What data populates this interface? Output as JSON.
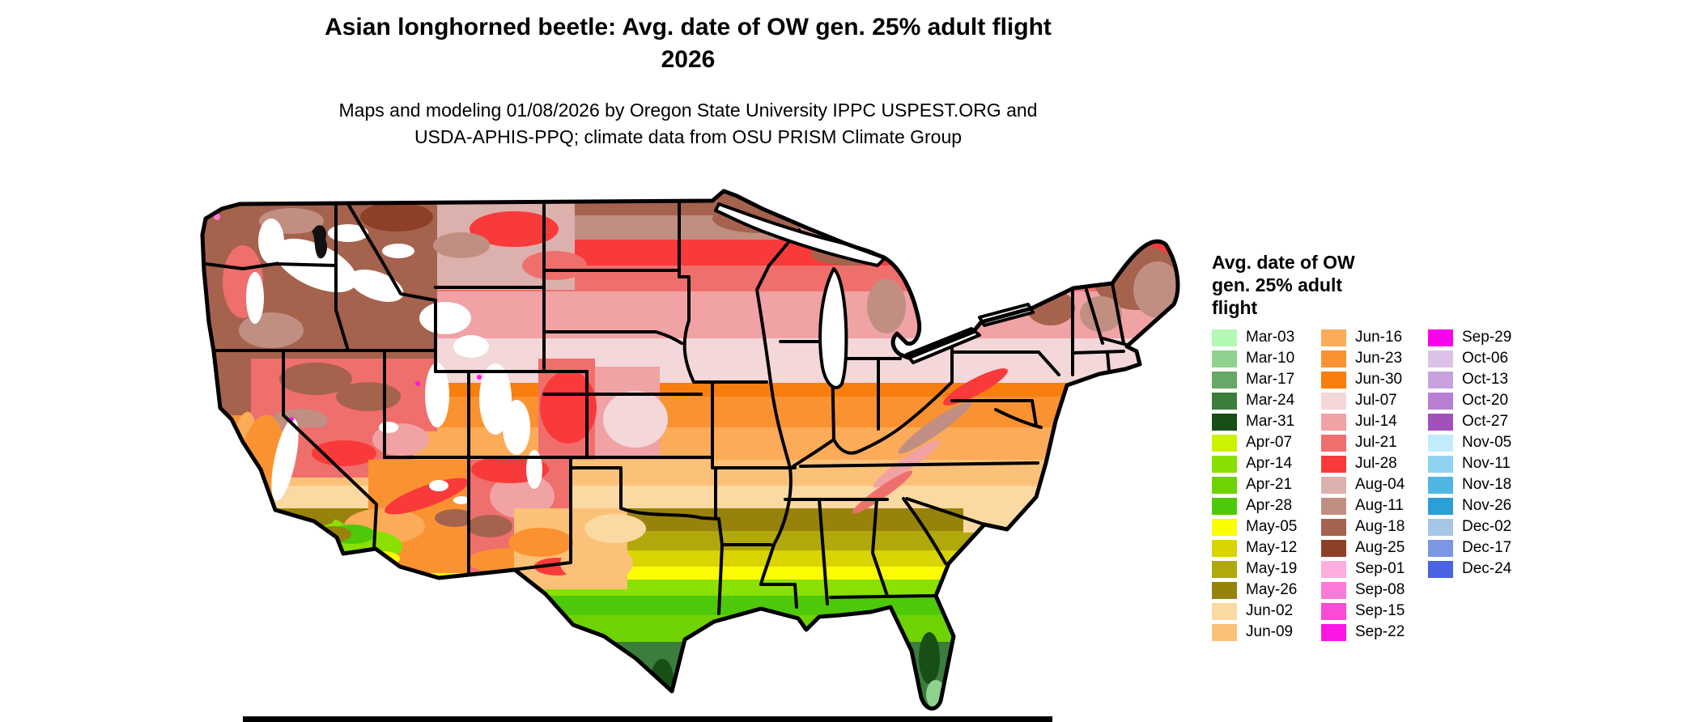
{
  "title": {
    "line1": "Asian longhorned beetle: Avg. date of OW gen. 25% adult flight",
    "line2": "2026"
  },
  "subtitle": {
    "line1": "Maps and modeling 01/08/2026 by Oregon State University IPPC USPEST.ORG and",
    "line2": "USDA-APHIS-PPQ; climate data from OSU PRISM Climate Group"
  },
  "map": {
    "region": "Continental United States",
    "no_data_color": "#ffffff"
  },
  "legend": {
    "title_lines": [
      "Avg. date of OW",
      "gen. 25% adult",
      "flight"
    ],
    "columns": [
      [
        {
          "label": "Mar-03",
          "color": "#b3f9b3"
        },
        {
          "label": "Mar-10",
          "color": "#8fd28f"
        },
        {
          "label": "Mar-17",
          "color": "#67a867"
        },
        {
          "label": "Mar-24",
          "color": "#3b7d3b"
        },
        {
          "label": "Mar-31",
          "color": "#174f17"
        },
        {
          "label": "Apr-07",
          "color": "#ccf202"
        },
        {
          "label": "Apr-14",
          "color": "#8ae002"
        },
        {
          "label": "Apr-21",
          "color": "#6fd202"
        },
        {
          "label": "Apr-28",
          "color": "#4ec909"
        },
        {
          "label": "May-05",
          "color": "#fdfd02"
        },
        {
          "label": "May-12",
          "color": "#d9d402"
        },
        {
          "label": "May-19",
          "color": "#b1a80b"
        },
        {
          "label": "May-26",
          "color": "#97820b"
        },
        {
          "label": "Jun-02",
          "color": "#fbd9a2"
        },
        {
          "label": "Jun-09",
          "color": "#fcc179"
        }
      ],
      [
        {
          "label": "Jun-16",
          "color": "#fcab59"
        },
        {
          "label": "Jun-23",
          "color": "#fb9231"
        },
        {
          "label": "Jun-30",
          "color": "#f87e0d"
        },
        {
          "label": "Jul-07",
          "color": "#f3d7d9"
        },
        {
          "label": "Jul-14",
          "color": "#f0a2a5"
        },
        {
          "label": "Jul-21",
          "color": "#ef6f6d"
        },
        {
          "label": "Jul-28",
          "color": "#f93a3a"
        },
        {
          "label": "Aug-04",
          "color": "#dcb0ac"
        },
        {
          "label": "Aug-11",
          "color": "#c08f82"
        },
        {
          "label": "Aug-18",
          "color": "#a5624d"
        },
        {
          "label": "Aug-25",
          "color": "#8e4026"
        },
        {
          "label": "Sep-01",
          "color": "#fdaede"
        },
        {
          "label": "Sep-08",
          "color": "#fc7ad8"
        },
        {
          "label": "Sep-15",
          "color": "#fb4ad8"
        },
        {
          "label": "Sep-22",
          "color": "#fb16e4"
        }
      ],
      [
        {
          "label": "Sep-29",
          "color": "#fa02ec"
        },
        {
          "label": "Oct-06",
          "color": "#dcc2e9"
        },
        {
          "label": "Oct-13",
          "color": "#c9a1de"
        },
        {
          "label": "Oct-20",
          "color": "#b97fd3"
        },
        {
          "label": "Oct-27",
          "color": "#a251bb"
        },
        {
          "label": "Nov-05",
          "color": "#c2ecfb"
        },
        {
          "label": "Nov-11",
          "color": "#8ed4f0"
        },
        {
          "label": "Nov-18",
          "color": "#51b5e3"
        },
        {
          "label": "Nov-26",
          "color": "#2b9fd8"
        },
        {
          "label": "Dec-02",
          "color": "#a6c6e7"
        },
        {
          "label": "Dec-17",
          "color": "#7b96e3"
        },
        {
          "label": "Dec-24",
          "color": "#4a63e0"
        }
      ]
    ]
  }
}
